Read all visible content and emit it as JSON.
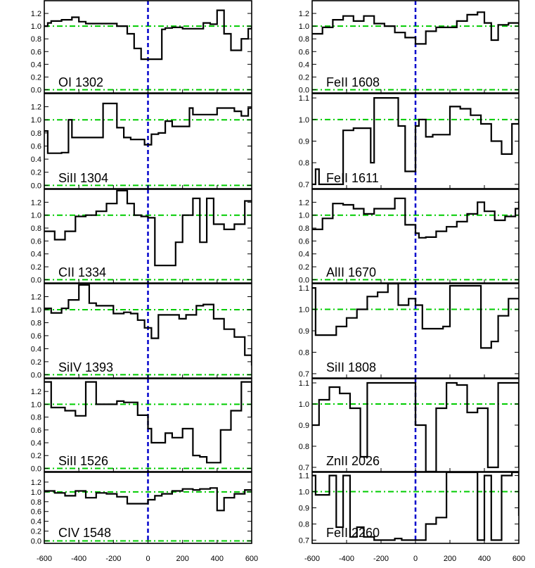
{
  "chart_data": [
    {
      "type": "line",
      "panel_label": "OI 1302",
      "column": "left",
      "x": [
        -600,
        -580,
        -560,
        -500,
        -440,
        -400,
        -360,
        -300,
        -240,
        -180,
        -120,
        -80,
        -40,
        0,
        20,
        80,
        100,
        140,
        200,
        260,
        320,
        360,
        400,
        440,
        480,
        540,
        580,
        600
      ],
      "y": [
        1.0,
        1.05,
        1.08,
        1.1,
        1.14,
        1.07,
        1.04,
        1.04,
        1.04,
        1.0,
        0.88,
        0.65,
        0.48,
        0.48,
        0.48,
        0.95,
        0.97,
        0.98,
        0.96,
        0.96,
        1.05,
        1.03,
        1.25,
        0.88,
        0.62,
        0.8,
        0.96,
        1.0
      ],
      "ylim": [
        -0.05,
        1.4
      ],
      "yticks": [
        "1.2",
        "1.0",
        "0.8",
        "0.6",
        "0.4",
        "0.2",
        "0.0"
      ],
      "ytick_values": [
        1.2,
        1.0,
        0.8,
        0.6,
        0.4,
        0.2,
        0.0
      ]
    },
    {
      "type": "line",
      "panel_label": "SiII 1304",
      "column": "left",
      "x": [
        -600,
        -580,
        -560,
        -500,
        -460,
        -440,
        -380,
        -320,
        -260,
        -220,
        -180,
        -140,
        -100,
        -60,
        -20,
        20,
        60,
        100,
        140,
        180,
        240,
        260,
        300,
        340,
        400,
        460,
        500,
        540,
        580,
        600
      ],
      "y": [
        0.83,
        0.49,
        0.49,
        0.5,
        1.0,
        0.73,
        0.73,
        0.73,
        1.25,
        1.25,
        0.88,
        0.73,
        0.7,
        0.7,
        0.62,
        0.78,
        0.8,
        0.98,
        0.9,
        0.9,
        1.18,
        1.08,
        1.08,
        1.08,
        1.18,
        1.18,
        1.13,
        1.06,
        1.18,
        1.2
      ],
      "ylim": [
        -0.05,
        1.4
      ],
      "yticks": [
        "1.2",
        "1.0",
        "0.8",
        "0.6",
        "0.4",
        "0.2",
        "0.0"
      ],
      "ytick_values": [
        1.2,
        1.0,
        0.8,
        0.6,
        0.4,
        0.2,
        0.0
      ]
    },
    {
      "type": "line",
      "panel_label": "CII 1334",
      "column": "left",
      "x": [
        -600,
        -540,
        -480,
        -420,
        -360,
        -300,
        -240,
        -180,
        -120,
        -80,
        -40,
        0,
        40,
        80,
        120,
        160,
        200,
        260,
        300,
        340,
        380,
        440,
        500,
        560,
        600
      ],
      "y": [
        0.75,
        0.62,
        0.75,
        0.98,
        1.0,
        1.06,
        1.18,
        1.38,
        1.18,
        1.0,
        0.98,
        0.96,
        0.22,
        0.22,
        0.22,
        0.58,
        1.0,
        1.26,
        0.58,
        1.26,
        0.86,
        0.78,
        0.86,
        1.22,
        1.22
      ],
      "ylim": [
        -0.05,
        1.4
      ],
      "yticks": [
        "1.2",
        "1.0",
        "0.8",
        "0.6",
        "0.4",
        "0.2",
        "0.0"
      ],
      "ytick_values": [
        1.2,
        1.0,
        0.8,
        0.6,
        0.4,
        0.2,
        0.0
      ]
    },
    {
      "type": "line",
      "panel_label": "SiIV 1393",
      "column": "left",
      "x": [
        -600,
        -560,
        -500,
        -460,
        -400,
        -340,
        -300,
        -240,
        -200,
        -140,
        -100,
        -60,
        -20,
        20,
        60,
        120,
        180,
        220,
        280,
        320,
        380,
        440,
        500,
        560,
        600
      ],
      "y": [
        1.02,
        0.95,
        1.02,
        1.15,
        1.38,
        1.1,
        1.06,
        1.06,
        0.94,
        0.96,
        0.94,
        0.84,
        0.72,
        0.56,
        0.92,
        0.92,
        0.86,
        0.92,
        1.06,
        1.08,
        0.86,
        0.7,
        0.58,
        0.3,
        0.14
      ],
      "ylim": [
        -0.05,
        1.4
      ],
      "yticks": [
        "1.2",
        "1.0",
        "0.8",
        "0.6",
        "0.4",
        "0.2",
        "0.0"
      ],
      "ytick_values": [
        1.2,
        1.0,
        0.8,
        0.6,
        0.4,
        0.2,
        0.0
      ]
    },
    {
      "type": "line",
      "panel_label": "SiII 1526",
      "column": "left",
      "x": [
        -600,
        -560,
        -480,
        -420,
        -360,
        -300,
        -240,
        -180,
        -140,
        -60,
        0,
        20,
        60,
        100,
        140,
        200,
        260,
        300,
        340,
        420,
        480,
        540,
        600
      ],
      "y": [
        1.35,
        0.95,
        0.9,
        0.82,
        1.35,
        1.0,
        1.0,
        1.05,
        1.03,
        0.83,
        0.62,
        0.4,
        0.4,
        0.55,
        0.48,
        0.62,
        0.2,
        0.18,
        0.09,
        0.6,
        0.9,
        1.35,
        0.8
      ],
      "ylim": [
        -0.05,
        1.4
      ],
      "yticks": [
        "1.2",
        "1.0",
        "0.8",
        "0.6",
        "0.4",
        "0.2",
        "0.0"
      ],
      "ytick_values": [
        1.2,
        1.0,
        0.8,
        0.6,
        0.4,
        0.2,
        0.0
      ]
    },
    {
      "type": "line",
      "panel_label": "CIV 1548",
      "column": "left",
      "x": [
        -600,
        -540,
        -480,
        -420,
        -360,
        -300,
        -240,
        -180,
        -120,
        -60,
        0,
        40,
        80,
        140,
        200,
        260,
        300,
        360,
        400,
        440,
        500,
        560,
        600
      ],
      "y": [
        1.02,
        0.98,
        0.92,
        1.02,
        0.88,
        0.98,
        0.96,
        0.9,
        0.76,
        0.76,
        0.84,
        0.92,
        0.96,
        1.02,
        1.06,
        1.04,
        1.06,
        1.08,
        0.62,
        0.88,
        0.96,
        1.04,
        1.02
      ],
      "ylim": [
        -0.05,
        1.4
      ],
      "yticks": [
        "1.2",
        "1.0",
        "0.8",
        "0.6",
        "0.4",
        "0.2",
        "0.0"
      ],
      "ytick_values": [
        1.2,
        1.0,
        0.8,
        0.6,
        0.4,
        0.2,
        0.0
      ]
    },
    {
      "type": "line",
      "panel_label": "FeII 1608",
      "column": "right",
      "x": [
        -600,
        -540,
        -480,
        -420,
        -360,
        -300,
        -240,
        -180,
        -120,
        -60,
        0,
        20,
        60,
        120,
        180,
        240,
        300,
        360,
        400,
        440,
        480,
        540,
        600
      ],
      "y": [
        0.88,
        0.98,
        1.1,
        1.16,
        1.08,
        1.16,
        1.04,
        1.0,
        0.9,
        0.82,
        0.72,
        0.72,
        0.92,
        0.98,
        0.98,
        1.08,
        1.18,
        1.22,
        1.05,
        0.78,
        1.02,
        1.05,
        1.02
      ],
      "ylim": [
        -0.05,
        1.4
      ],
      "yticks": [
        "1.2",
        "1.0",
        "0.8",
        "0.6",
        "0.4",
        "0.2",
        "0.0"
      ],
      "ytick_values": [
        1.2,
        1.0,
        0.8,
        0.6,
        0.4,
        0.2,
        0.0
      ]
    },
    {
      "type": "line",
      "panel_label": "FeII 1611",
      "column": "right",
      "x": [
        -600,
        -580,
        -560,
        -540,
        -480,
        -420,
        -360,
        -300,
        -260,
        -240,
        -200,
        -160,
        -100,
        -60,
        -20,
        0,
        20,
        60,
        100,
        160,
        200,
        260,
        320,
        380,
        440,
        500,
        560,
        600
      ],
      "y": [
        0.7,
        0.77,
        0.7,
        0.7,
        0.7,
        0.95,
        0.96,
        0.96,
        0.8,
        1.1,
        1.1,
        1.1,
        0.97,
        0.76,
        0.76,
        0.97,
        1.0,
        0.92,
        0.93,
        0.93,
        1.06,
        1.05,
        1.02,
        0.98,
        0.9,
        0.84,
        0.98,
        1.0
      ],
      "ylim": [
        0.68,
        1.12
      ],
      "yticks": [
        "1.1",
        "1.0",
        "0.9",
        "0.8",
        "0.7"
      ],
      "ytick_values": [
        1.1,
        1.0,
        0.9,
        0.8,
        0.7
      ]
    },
    {
      "type": "line",
      "panel_label": "AlII 1670",
      "column": "right",
      "x": [
        -600,
        -540,
        -480,
        -420,
        -360,
        -300,
        -240,
        -180,
        -120,
        -60,
        0,
        20,
        60,
        120,
        180,
        240,
        300,
        360,
        400,
        460,
        520,
        580,
        600
      ],
      "y": [
        0.78,
        0.95,
        1.18,
        1.16,
        1.1,
        1.02,
        1.1,
        1.1,
        1.26,
        0.85,
        0.72,
        0.65,
        0.66,
        0.75,
        0.82,
        0.9,
        1.02,
        1.2,
        1.06,
        0.92,
        0.98,
        1.1,
        1.22
      ],
      "ylim": [
        -0.05,
        1.4
      ],
      "yticks": [
        "1.2",
        "1.0",
        "0.8",
        "0.6",
        "0.4",
        "0.2",
        "0.0"
      ],
      "ytick_values": [
        1.2,
        1.0,
        0.8,
        0.6,
        0.4,
        0.2,
        0.0
      ]
    },
    {
      "type": "line",
      "panel_label": "SiII 1808",
      "column": "right",
      "x": [
        -600,
        -580,
        -520,
        -460,
        -400,
        -340,
        -280,
        -220,
        -160,
        -100,
        -40,
        0,
        40,
        60,
        100,
        160,
        200,
        240,
        280,
        360,
        380,
        440,
        480,
        540,
        600
      ],
      "y": [
        1.1,
        0.88,
        0.88,
        0.92,
        0.96,
        1.0,
        1.06,
        1.08,
        1.12,
        1.02,
        1.05,
        1.02,
        0.91,
        0.91,
        0.91,
        0.92,
        1.11,
        1.11,
        1.11,
        1.11,
        0.82,
        0.85,
        0.97,
        1.05,
        1.05
      ],
      "ylim": [
        0.68,
        1.12
      ],
      "yticks": [
        "1.1",
        "1.0",
        "0.9",
        "0.8",
        "0.7"
      ],
      "ytick_values": [
        1.1,
        1.0,
        0.9,
        0.8,
        0.7
      ]
    },
    {
      "type": "line",
      "panel_label": "ZnII 2026",
      "column": "right",
      "x": [
        -600,
        -560,
        -500,
        -440,
        -380,
        -320,
        -280,
        -240,
        -180,
        -120,
        -60,
        0,
        60,
        120,
        180,
        240,
        300,
        360,
        420,
        480,
        540,
        600
      ],
      "y": [
        0.9,
        1.02,
        1.08,
        1.05,
        0.98,
        0.75,
        1.1,
        1.1,
        1.1,
        1.1,
        1.1,
        0.9,
        0.68,
        0.98,
        1.1,
        1.09,
        0.96,
        0.98,
        0.7,
        1.1,
        1.1,
        0.7
      ],
      "ylim": [
        0.68,
        1.12
      ],
      "yticks": [
        "1.1",
        "1.0",
        "0.9",
        "0.8",
        "0.7"
      ],
      "ytick_values": [
        1.1,
        1.0,
        0.9,
        0.8,
        0.7
      ]
    },
    {
      "type": "line",
      "panel_label": "FeII 2260",
      "column": "right",
      "x": [
        -600,
        -580,
        -540,
        -500,
        -460,
        -420,
        -380,
        -340,
        -300,
        -240,
        -180,
        -120,
        -80,
        -40,
        0,
        60,
        120,
        180,
        240,
        300,
        360,
        400,
        440,
        500,
        560,
        600
      ],
      "y": [
        1.1,
        0.98,
        0.98,
        1.1,
        0.78,
        1.1,
        0.72,
        0.78,
        0.72,
        0.7,
        0.7,
        0.71,
        0.7,
        0.7,
        0.7,
        0.8,
        0.84,
        1.12,
        1.12,
        1.12,
        0.7,
        1.1,
        0.7,
        1.1,
        1.12,
        0.85
      ],
      "ylim": [
        0.68,
        1.12
      ],
      "yticks": [
        "1.1",
        "1.0",
        "0.9",
        "0.8",
        "0.7"
      ],
      "ytick_values": [
        1.1,
        1.0,
        0.9,
        0.8,
        0.7
      ]
    }
  ],
  "x_axis": {
    "range": [
      -600,
      600
    ],
    "tick_labels": [
      "-600",
      "-400",
      "-200",
      "0",
      "200",
      "400",
      "600"
    ],
    "tick_values": [
      -600,
      -400,
      -200,
      0,
      200,
      400,
      600
    ]
  },
  "colors": {
    "spectrum": "#000000",
    "continuum_line": "#00cc00",
    "zero_velocity_line": "#0000cc"
  },
  "reference_lines": {
    "continuum_level": 1.0,
    "zero_level": 0.0,
    "zero_velocity": 0
  }
}
